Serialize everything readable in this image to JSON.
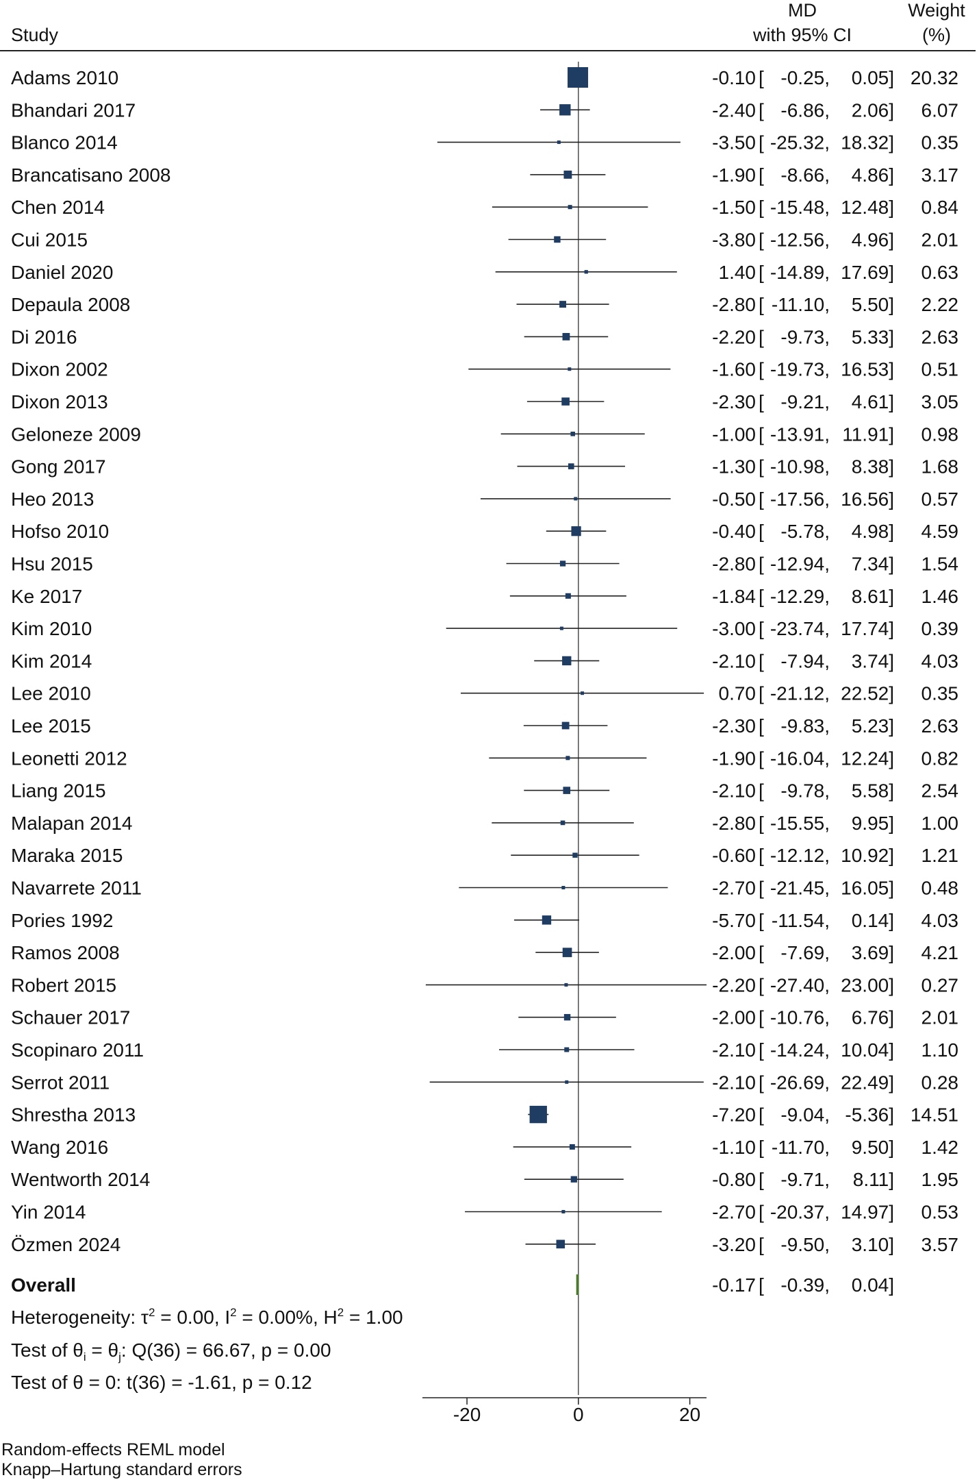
{
  "chart_data": {
    "type": "forest",
    "headers": {
      "study": "Study",
      "md_line1": "MD",
      "md_line2": "with 95% CI",
      "weight_line1": "Weight",
      "weight_line2": "(%)"
    },
    "studies": [
      {
        "name": "Adams 2010",
        "md": -0.1,
        "lo": -0.25,
        "hi": 0.05,
        "weight": 20.32,
        "md_text": "-0.10",
        "lo_text": "-0.25,",
        "hi_text": "0.05]",
        "weight_text": "20.32"
      },
      {
        "name": "Bhandari 2017",
        "md": -2.4,
        "lo": -6.86,
        "hi": 2.06,
        "weight": 6.07,
        "md_text": "-2.40",
        "lo_text": "-6.86,",
        "hi_text": "2.06]",
        "weight_text": "6.07"
      },
      {
        "name": "Blanco 2014",
        "md": -3.5,
        "lo": -25.32,
        "hi": 18.32,
        "weight": 0.35,
        "md_text": "-3.50",
        "lo_text": "-25.32,",
        "hi_text": "18.32]",
        "weight_text": "0.35"
      },
      {
        "name": "Brancatisano 2008",
        "md": -1.9,
        "lo": -8.66,
        "hi": 4.86,
        "weight": 3.17,
        "md_text": "-1.90",
        "lo_text": "-8.66,",
        "hi_text": "4.86]",
        "weight_text": "3.17"
      },
      {
        "name": "Chen 2014",
        "md": -1.5,
        "lo": -15.48,
        "hi": 12.48,
        "weight": 0.84,
        "md_text": "-1.50",
        "lo_text": "-15.48,",
        "hi_text": "12.48]",
        "weight_text": "0.84"
      },
      {
        "name": "Cui 2015",
        "md": -3.8,
        "lo": -12.56,
        "hi": 4.96,
        "weight": 2.01,
        "md_text": "-3.80",
        "lo_text": "-12.56,",
        "hi_text": "4.96]",
        "weight_text": "2.01"
      },
      {
        "name": "Daniel 2020",
        "md": 1.4,
        "lo": -14.89,
        "hi": 17.69,
        "weight": 0.63,
        "md_text": "1.40",
        "lo_text": "-14.89,",
        "hi_text": "17.69]",
        "weight_text": "0.63"
      },
      {
        "name": "Depaula 2008",
        "md": -2.8,
        "lo": -11.1,
        "hi": 5.5,
        "weight": 2.22,
        "md_text": "-2.80",
        "lo_text": "-11.10,",
        "hi_text": "5.50]",
        "weight_text": "2.22"
      },
      {
        "name": "Di 2016",
        "md": -2.2,
        "lo": -9.73,
        "hi": 5.33,
        "weight": 2.63,
        "md_text": "-2.20",
        "lo_text": "-9.73,",
        "hi_text": "5.33]",
        "weight_text": "2.63"
      },
      {
        "name": "Dixon 2002",
        "md": -1.6,
        "lo": -19.73,
        "hi": 16.53,
        "weight": 0.51,
        "md_text": "-1.60",
        "lo_text": "-19.73,",
        "hi_text": "16.53]",
        "weight_text": "0.51"
      },
      {
        "name": "Dixon 2013",
        "md": -2.3,
        "lo": -9.21,
        "hi": 4.61,
        "weight": 3.05,
        "md_text": "-2.30",
        "lo_text": "-9.21,",
        "hi_text": "4.61]",
        "weight_text": "3.05"
      },
      {
        "name": "Geloneze 2009",
        "md": -1.0,
        "lo": -13.91,
        "hi": 11.91,
        "weight": 0.98,
        "md_text": "-1.00",
        "lo_text": "-13.91,",
        "hi_text": "11.91]",
        "weight_text": "0.98"
      },
      {
        "name": "Gong 2017",
        "md": -1.3,
        "lo": -10.98,
        "hi": 8.38,
        "weight": 1.68,
        "md_text": "-1.30",
        "lo_text": "-10.98,",
        "hi_text": "8.38]",
        "weight_text": "1.68"
      },
      {
        "name": "Heo 2013",
        "md": -0.5,
        "lo": -17.56,
        "hi": 16.56,
        "weight": 0.57,
        "md_text": "-0.50",
        "lo_text": "-17.56,",
        "hi_text": "16.56]",
        "weight_text": "0.57"
      },
      {
        "name": "Hofso 2010",
        "md": -0.4,
        "lo": -5.78,
        "hi": 4.98,
        "weight": 4.59,
        "md_text": "-0.40",
        "lo_text": "-5.78,",
        "hi_text": "4.98]",
        "weight_text": "4.59"
      },
      {
        "name": "Hsu 2015",
        "md": -2.8,
        "lo": -12.94,
        "hi": 7.34,
        "weight": 1.54,
        "md_text": "-2.80",
        "lo_text": "-12.94,",
        "hi_text": "7.34]",
        "weight_text": "1.54"
      },
      {
        "name": "Ke 2017",
        "md": -1.84,
        "lo": -12.29,
        "hi": 8.61,
        "weight": 1.46,
        "md_text": "-1.84",
        "lo_text": "-12.29,",
        "hi_text": "8.61]",
        "weight_text": "1.46"
      },
      {
        "name": "Kim 2010",
        "md": -3.0,
        "lo": -23.74,
        "hi": 17.74,
        "weight": 0.39,
        "md_text": "-3.00",
        "lo_text": "-23.74,",
        "hi_text": "17.74]",
        "weight_text": "0.39"
      },
      {
        "name": "Kim 2014",
        "md": -2.1,
        "lo": -7.94,
        "hi": 3.74,
        "weight": 4.03,
        "md_text": "-2.10",
        "lo_text": "-7.94,",
        "hi_text": "3.74]",
        "weight_text": "4.03"
      },
      {
        "name": "Lee 2010",
        "md": 0.7,
        "lo": -21.12,
        "hi": 22.52,
        "weight": 0.35,
        "md_text": "0.70",
        "lo_text": "-21.12,",
        "hi_text": "22.52]",
        "weight_text": "0.35"
      },
      {
        "name": "Lee 2015",
        "md": -2.3,
        "lo": -9.83,
        "hi": 5.23,
        "weight": 2.63,
        "md_text": "-2.30",
        "lo_text": "-9.83,",
        "hi_text": "5.23]",
        "weight_text": "2.63"
      },
      {
        "name": "Leonetti 2012",
        "md": -1.9,
        "lo": -16.04,
        "hi": 12.24,
        "weight": 0.82,
        "md_text": "-1.90",
        "lo_text": "-16.04,",
        "hi_text": "12.24]",
        "weight_text": "0.82"
      },
      {
        "name": "Liang 2015",
        "md": -2.1,
        "lo": -9.78,
        "hi": 5.58,
        "weight": 2.54,
        "md_text": "-2.10",
        "lo_text": "-9.78,",
        "hi_text": "5.58]",
        "weight_text": "2.54"
      },
      {
        "name": "Malapan 2014",
        "md": -2.8,
        "lo": -15.55,
        "hi": 9.95,
        "weight": 1.0,
        "md_text": "-2.80",
        "lo_text": "-15.55,",
        "hi_text": "9.95]",
        "weight_text": "1.00"
      },
      {
        "name": "Maraka 2015",
        "md": -0.6,
        "lo": -12.12,
        "hi": 10.92,
        "weight": 1.21,
        "md_text": "-0.60",
        "lo_text": "-12.12,",
        "hi_text": "10.92]",
        "weight_text": "1.21"
      },
      {
        "name": "Navarrete 2011",
        "md": -2.7,
        "lo": -21.45,
        "hi": 16.05,
        "weight": 0.48,
        "md_text": "-2.70",
        "lo_text": "-21.45,",
        "hi_text": "16.05]",
        "weight_text": "0.48"
      },
      {
        "name": "Pories 1992",
        "md": -5.7,
        "lo": -11.54,
        "hi": 0.14,
        "weight": 4.03,
        "md_text": "-5.70",
        "lo_text": "-11.54,",
        "hi_text": "0.14]",
        "weight_text": "4.03"
      },
      {
        "name": "Ramos 2008",
        "md": -2.0,
        "lo": -7.69,
        "hi": 3.69,
        "weight": 4.21,
        "md_text": "-2.00",
        "lo_text": "-7.69,",
        "hi_text": "3.69]",
        "weight_text": "4.21"
      },
      {
        "name": "Robert 2015",
        "md": -2.2,
        "lo": -27.4,
        "hi": 23.0,
        "weight": 0.27,
        "md_text": "-2.20",
        "lo_text": "-27.40,",
        "hi_text": "23.00]",
        "weight_text": "0.27"
      },
      {
        "name": "Schauer 2017",
        "md": -2.0,
        "lo": -10.76,
        "hi": 6.76,
        "weight": 2.01,
        "md_text": "-2.00",
        "lo_text": "-10.76,",
        "hi_text": "6.76]",
        "weight_text": "2.01"
      },
      {
        "name": "Scopinaro 2011",
        "md": -2.1,
        "lo": -14.24,
        "hi": 10.04,
        "weight": 1.1,
        "md_text": "-2.10",
        "lo_text": "-14.24,",
        "hi_text": "10.04]",
        "weight_text": "1.10"
      },
      {
        "name": "Serrot 2011",
        "md": -2.1,
        "lo": -26.69,
        "hi": 22.49,
        "weight": 0.28,
        "md_text": "-2.10",
        "lo_text": "-26.69,",
        "hi_text": "22.49]",
        "weight_text": "0.28"
      },
      {
        "name": "Shrestha 2013",
        "md": -7.2,
        "lo": -9.04,
        "hi": -5.36,
        "weight": 14.51,
        "md_text": "-7.20",
        "lo_text": "-9.04,",
        "hi_text": "-5.36]",
        "weight_text": "14.51"
      },
      {
        "name": "Wang 2016",
        "md": -1.1,
        "lo": -11.7,
        "hi": 9.5,
        "weight": 1.42,
        "md_text": "-1.10",
        "lo_text": "-11.70,",
        "hi_text": "9.50]",
        "weight_text": "1.42"
      },
      {
        "name": "Wentworth 2014",
        "md": -0.8,
        "lo": -9.71,
        "hi": 8.11,
        "weight": 1.95,
        "md_text": "-0.80",
        "lo_text": "-9.71,",
        "hi_text": "8.11]",
        "weight_text": "1.95"
      },
      {
        "name": "Yin 2014",
        "md": -2.7,
        "lo": -20.37,
        "hi": 14.97,
        "weight": 0.53,
        "md_text": "-2.70",
        "lo_text": "-20.37,",
        "hi_text": "14.97]",
        "weight_text": "0.53"
      },
      {
        "name": "Özmen 2024",
        "md": -3.2,
        "lo": -9.5,
        "hi": 3.1,
        "weight": 3.57,
        "md_text": "-3.20",
        "lo_text": "-9.50,",
        "hi_text": "3.10]",
        "weight_text": "3.57"
      }
    ],
    "overall": {
      "name": "Overall",
      "md": -0.17,
      "lo": -0.39,
      "hi": 0.04,
      "md_text": "-0.17",
      "lo_text": "-0.39,",
      "hi_text": "0.04]"
    },
    "heterogeneity": {
      "prefix": "Heterogeneity: τ",
      "tau_sup": "2",
      "tau_value": " = 0.00, I",
      "i2_sup": "2",
      "i2_value": " = 0.00%, H",
      "h2_sup": "2",
      "h2_value": " = 1.00"
    },
    "test_theta_equal": {
      "prefix": "Test of θ",
      "sub_i": "i",
      "mid": " = θ",
      "sub_j": "j",
      "rest": ": Q(36) = 66.67, p = 0.00"
    },
    "test_theta_zero": "Test of θ = 0: t(36) = -1.61, p = 0.12",
    "x_axis": {
      "min": -28,
      "max": 23,
      "ticks": [
        -20,
        0,
        20
      ],
      "tick_labels": [
        "-20",
        "0",
        "20"
      ]
    },
    "footnotes": [
      "Random-effects REML model",
      "Knapp–Hartung standard errors"
    ],
    "colors": {
      "marker": "#1f3d63",
      "overall": "#4a7a2a",
      "line": "#222222",
      "text": "#111111"
    }
  }
}
